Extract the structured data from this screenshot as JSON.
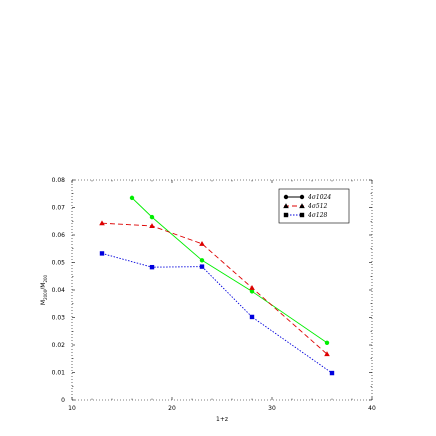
{
  "chart_data": {
    "type": "line",
    "title": "",
    "xlabel": "1+z",
    "ylabel_main": "M",
    "ylabel_sub1": "2000",
    "ylabel_sep": "/M",
    "ylabel_sub2": "200",
    "xlim": [
      10,
      40
    ],
    "ylim": [
      0,
      0.08
    ],
    "x_ticks": [
      10,
      20,
      30,
      40
    ],
    "x_tick_labels": [
      "10",
      "20",
      "30",
      "40"
    ],
    "y_ticks": [
      0,
      0.01,
      0.02,
      0.03,
      0.04,
      0.05,
      0.06,
      0.07,
      0.08
    ],
    "y_tick_labels": [
      "0",
      "0.01",
      "0.02",
      "0.03",
      "0.04",
      "0.05",
      "0.06",
      "0.07",
      "0.08"
    ],
    "grid": false,
    "legend_position": "top-right",
    "series": [
      {
        "name": "4σ1024",
        "color": "#00ee00",
        "marker_color": "#00ee00",
        "legend_line_color": "#000000",
        "marker": "circle",
        "dash": "",
        "x": [
          16,
          18,
          23,
          28,
          35.5
        ],
        "y": [
          0.0735,
          0.0665,
          0.0508,
          0.0395,
          0.0208
        ]
      },
      {
        "name": "4σ512",
        "color": "#dd0000",
        "marker_color": "#dd0000",
        "legend_line_color": "#dd0000",
        "marker": "triangle",
        "dash": "5,3",
        "x": [
          13,
          18,
          23,
          28,
          35.5
        ],
        "y": [
          0.0643,
          0.0633,
          0.0568,
          0.0408,
          0.0167
        ]
      },
      {
        "name": "4σ128",
        "color": "#0000dd",
        "marker_color": "#0000dd",
        "legend_line_color": "#0000dd",
        "marker": "square",
        "dash": "1.5,1.5",
        "x": [
          13,
          18,
          23,
          28,
          36
        ],
        "y": [
          0.0533,
          0.0483,
          0.0485,
          0.0302,
          0.0098
        ]
      }
    ]
  }
}
